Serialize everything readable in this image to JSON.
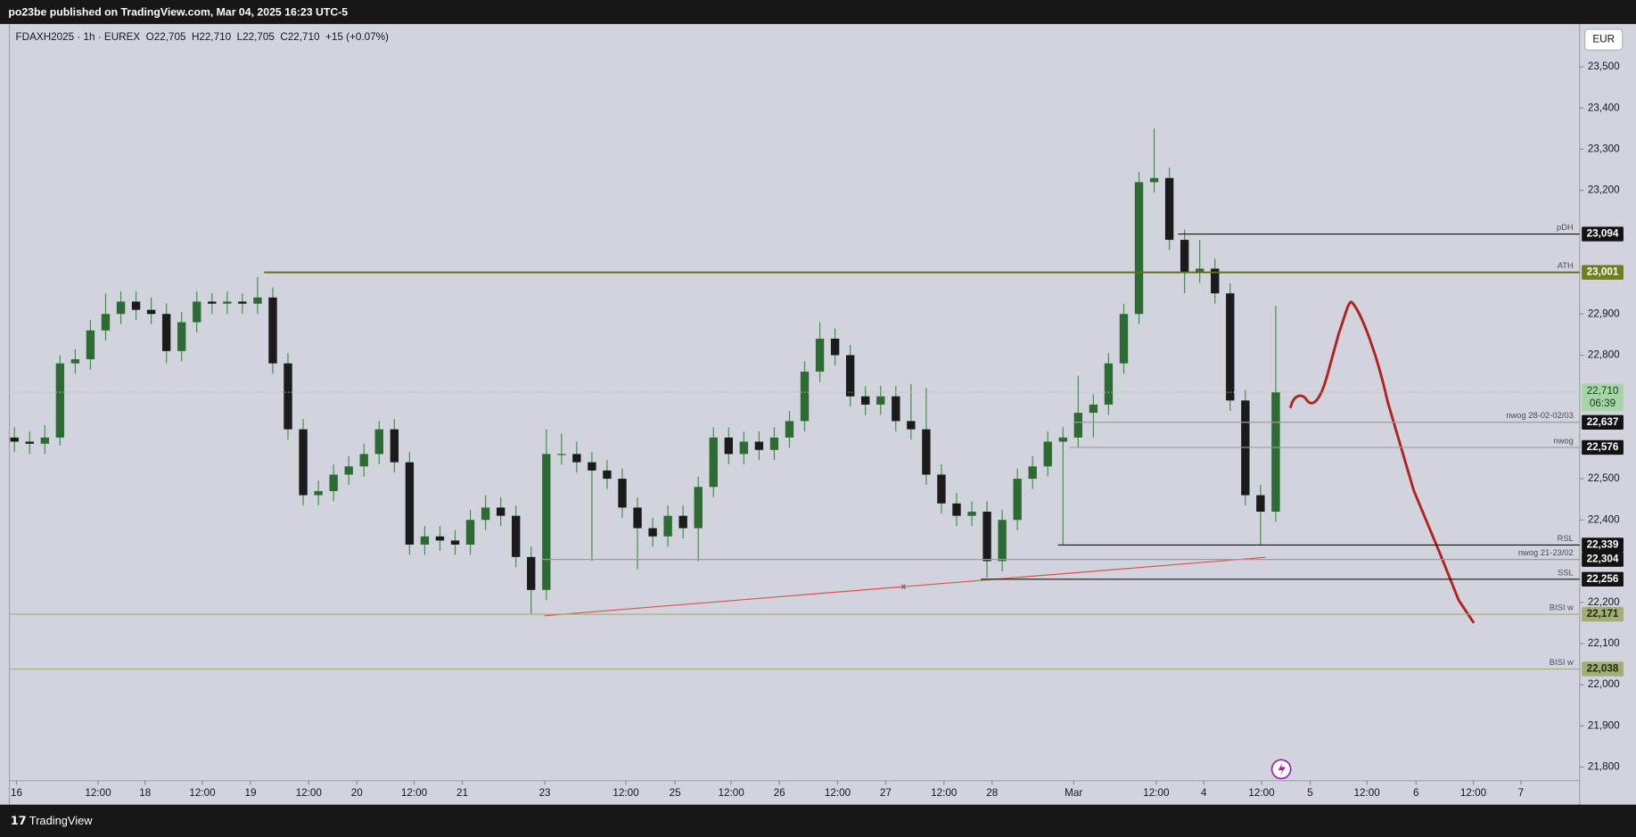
{
  "header": {
    "publisher": "po23be published on TradingView.com, Mar 04, 2025 16:23 UTC-5",
    "legend": "FDAXH2025 · 1h · EUREX  O22,705  H22,710  L22,705  C22,710  +15 (+0.07%)",
    "currency": "EUR",
    "brand": "TradingView"
  },
  "chart_data": {
    "type": "candlestick",
    "up_color": "#2e6b34",
    "down_color": "#1b1b1b",
    "wick_color": "#3f8f45",
    "xlim": [
      0,
      310
    ],
    "ylim": [
      21767,
      23604
    ],
    "xticks": [
      {
        "value": 1.4,
        "label": "16"
      },
      {
        "value": 17.5,
        "label": "12:00"
      },
      {
        "value": 26.8,
        "label": "18"
      },
      {
        "value": 38.1,
        "label": "12:00"
      },
      {
        "value": 47.6,
        "label": "19"
      },
      {
        "value": 59.1,
        "label": "12:00"
      },
      {
        "value": 68.6,
        "label": "20"
      },
      {
        "value": 79.9,
        "label": "12:00"
      },
      {
        "value": 89.4,
        "label": "21"
      },
      {
        "value": 105.7,
        "label": "23"
      },
      {
        "value": 121.7,
        "label": "12:00"
      },
      {
        "value": 131.4,
        "label": "25"
      },
      {
        "value": 142.5,
        "label": "12:00"
      },
      {
        "value": 152,
        "label": "26"
      },
      {
        "value": 163.5,
        "label": "12:00"
      },
      {
        "value": 173,
        "label": "27"
      },
      {
        "value": 184.5,
        "label": "12:00"
      },
      {
        "value": 194,
        "label": "28"
      },
      {
        "value": 210.1,
        "label": "Mar"
      },
      {
        "value": 226.4,
        "label": "12:00"
      },
      {
        "value": 235.8,
        "label": "4"
      },
      {
        "value": 247.2,
        "label": "12:00"
      },
      {
        "value": 256.8,
        "label": "5"
      },
      {
        "value": 268,
        "label": "12:00"
      },
      {
        "value": 277.7,
        "label": "6"
      },
      {
        "value": 289,
        "label": "12:00"
      },
      {
        "value": 298.4,
        "label": "7"
      }
    ],
    "yticks": [
      {
        "value": 23500,
        "label": "23,500"
      },
      {
        "value": 23400,
        "label": "23,400"
      },
      {
        "value": 23300,
        "label": "23,300"
      },
      {
        "value": 23200,
        "label": "23,200"
      },
      {
        "value": 22900,
        "label": "22,900"
      },
      {
        "value": 22800,
        "label": "22,800"
      },
      {
        "value": 22500,
        "label": "22,500"
      },
      {
        "value": 22400,
        "label": "22,400"
      },
      {
        "value": 22200,
        "label": "22,200"
      },
      {
        "value": 22100,
        "label": "22,100"
      },
      {
        "value": 22000,
        "label": "22,000"
      },
      {
        "value": 21900,
        "label": "21,900"
      },
      {
        "value": 21800,
        "label": "21,800"
      }
    ],
    "x": [
      1,
      4,
      7,
      10,
      13,
      16,
      19,
      22,
      25,
      28,
      31,
      34,
      37,
      40,
      43,
      46,
      49,
      52,
      55,
      58,
      61,
      64,
      67,
      70,
      73,
      76,
      79,
      82,
      85,
      88,
      91,
      94,
      97,
      100,
      103,
      106,
      109,
      112,
      115,
      118,
      121,
      124,
      127,
      130,
      133,
      136,
      139,
      142,
      145,
      148,
      151,
      154,
      157,
      160,
      163,
      166,
      169,
      172,
      175,
      178,
      181,
      184,
      187,
      190,
      193,
      196,
      199,
      202,
      205,
      208,
      211,
      214,
      217,
      220,
      223,
      226,
      229,
      232,
      235,
      238,
      241,
      244,
      247,
      250
    ],
    "open": [
      22600,
      22590,
      22585,
      22600,
      22780,
      22790,
      22860,
      22900,
      22930,
      22910,
      22900,
      22810,
      22880,
      22930,
      22925,
      22930,
      22925,
      22940,
      22780,
      22620,
      22460,
      22470,
      22510,
      22530,
      22560,
      22620,
      22540,
      22340,
      22360,
      22350,
      22340,
      22400,
      22430,
      22410,
      22310,
      22230,
      22560,
      22560,
      22540,
      22520,
      22500,
      22430,
      22380,
      22360,
      22410,
      22380,
      22480,
      22600,
      22560,
      22590,
      22570,
      22600,
      22640,
      22760,
      22840,
      22800,
      22700,
      22680,
      22700,
      22640,
      22620,
      22510,
      22440,
      22410,
      22420,
      22300,
      22400,
      22500,
      22530,
      22590,
      22600,
      22660,
      22680,
      22780,
      22900,
      23220,
      23230,
      23080,
      23000,
      23010,
      22950,
      22690,
      22460,
      22420
    ],
    "high": [
      22625,
      22615,
      22630,
      22800,
      22815,
      22885,
      22950,
      22955,
      22955,
      22940,
      22925,
      22905,
      22955,
      22950,
      22955,
      22950,
      22990,
      22965,
      22805,
      22645,
      22495,
      22535,
      22555,
      22585,
      22640,
      22645,
      22565,
      22385,
      22385,
      22375,
      22425,
      22460,
      22455,
      22435,
      22335,
      22620,
      22610,
      22590,
      22565,
      22545,
      22525,
      22455,
      22405,
      22435,
      22435,
      22505,
      22625,
      22625,
      22615,
      22615,
      22625,
      22665,
      22785,
      22880,
      22865,
      22825,
      22725,
      22725,
      22725,
      22730,
      22720,
      22535,
      22465,
      22445,
      22445,
      22425,
      22525,
      22555,
      22615,
      22625,
      22750,
      22705,
      22805,
      22925,
      23245,
      23350,
      23255,
      23105,
      23080,
      23035,
      22975,
      22715,
      22485,
      22920
    ],
    "low": [
      22565,
      22560,
      22560,
      22580,
      22755,
      22765,
      22835,
      22875,
      22885,
      22875,
      22780,
      22785,
      22855,
      22900,
      22900,
      22900,
      22900,
      22755,
      22595,
      22435,
      22435,
      22445,
      22485,
      22505,
      22535,
      22515,
      22315,
      22315,
      22325,
      22315,
      22315,
      22375,
      22385,
      22285,
      22172,
      22205,
      22535,
      22515,
      22300,
      22475,
      22405,
      22280,
      22335,
      22335,
      22355,
      22300,
      22455,
      22535,
      22535,
      22545,
      22545,
      22575,
      22615,
      22735,
      22775,
      22675,
      22655,
      22655,
      22615,
      22595,
      22485,
      22415,
      22385,
      22385,
      22260,
      22275,
      22375,
      22475,
      22505,
      22340,
      22575,
      22600,
      22655,
      22755,
      22875,
      23195,
      23055,
      22950,
      22975,
      22925,
      22665,
      22435,
      22339,
      22395
    ],
    "close": [
      22590,
      22585,
      22600,
      22780,
      22790,
      22860,
      22900,
      22930,
      22910,
      22900,
      22810,
      22880,
      22930,
      22925,
      22930,
      22925,
      22940,
      22780,
      22620,
      22460,
      22470,
      22510,
      22530,
      22560,
      22620,
      22540,
      22340,
      22360,
      22350,
      22340,
      22400,
      22430,
      22410,
      22310,
      22230,
      22560,
      22560,
      22540,
      22520,
      22500,
      22430,
      22380,
      22360,
      22410,
      22380,
      22480,
      22600,
      22560,
      22590,
      22570,
      22600,
      22640,
      22760,
      22840,
      22800,
      22700,
      22680,
      22700,
      22640,
      22620,
      22510,
      22440,
      22410,
      22420,
      22300,
      22400,
      22500,
      22530,
      22590,
      22600,
      22660,
      22680,
      22780,
      22900,
      23220,
      23230,
      23080,
      23000,
      23010,
      22950,
      22690,
      22460,
      22420,
      22710
    ],
    "levels": [
      {
        "value": 23094,
        "label": "23,094",
        "tag": "pDH",
        "from": 230.7,
        "color": "#131313",
        "box": "#131313",
        "text_color": "#ffffff"
      },
      {
        "value": 23001,
        "label": "23,001",
        "tag": "ATH",
        "from": 50.3,
        "color": "#5f6e12",
        "box": "#6f7d1e",
        "text_color": "#ffffff"
      },
      {
        "value": 22637,
        "label": "22,637",
        "tag": "nwog 28-02-02/03",
        "from": 210.3,
        "color": "#9a9ca3",
        "box": "#131313",
        "text_color": "#ffffff"
      },
      {
        "value": 22576,
        "label": "22,576",
        "tag": "nwog",
        "from": 209.3,
        "color": "#9a9ca3",
        "box": "#131313",
        "text_color": "#ffffff"
      },
      {
        "value": 22339,
        "label": "22,339",
        "tag": "RSL",
        "from": 207,
        "color": "#131313",
        "box": "#131313",
        "text_color": "#ffffff"
      },
      {
        "value": 22304,
        "label": "22,304",
        "tag": "nwog 21-23/02",
        "from": 105,
        "color": "#9a9ca3",
        "box": "#131313",
        "text_color": "#ffffff"
      },
      {
        "value": 22256,
        "label": "22,256",
        "tag": "SSL",
        "from": 191.8,
        "color": "#131313",
        "box": "#131313",
        "text_color": "#ffffff"
      },
      {
        "value": 22171,
        "label": "22,171",
        "tag": "BISI w",
        "from": 0,
        "color": "#a3ad78",
        "box": "#a3ad78",
        "text_color": "#1e2a05"
      },
      {
        "value": 22038,
        "label": "22,038",
        "tag": "BISI w",
        "from": 0,
        "color": "#a3ad78",
        "box": "#a3ad78",
        "text_color": "#1e2a05"
      }
    ],
    "last": {
      "value": 22710,
      "label": "22,710",
      "countdown": "06:39",
      "color": "#a5d6a7"
    },
    "trend_label": "x"
  }
}
